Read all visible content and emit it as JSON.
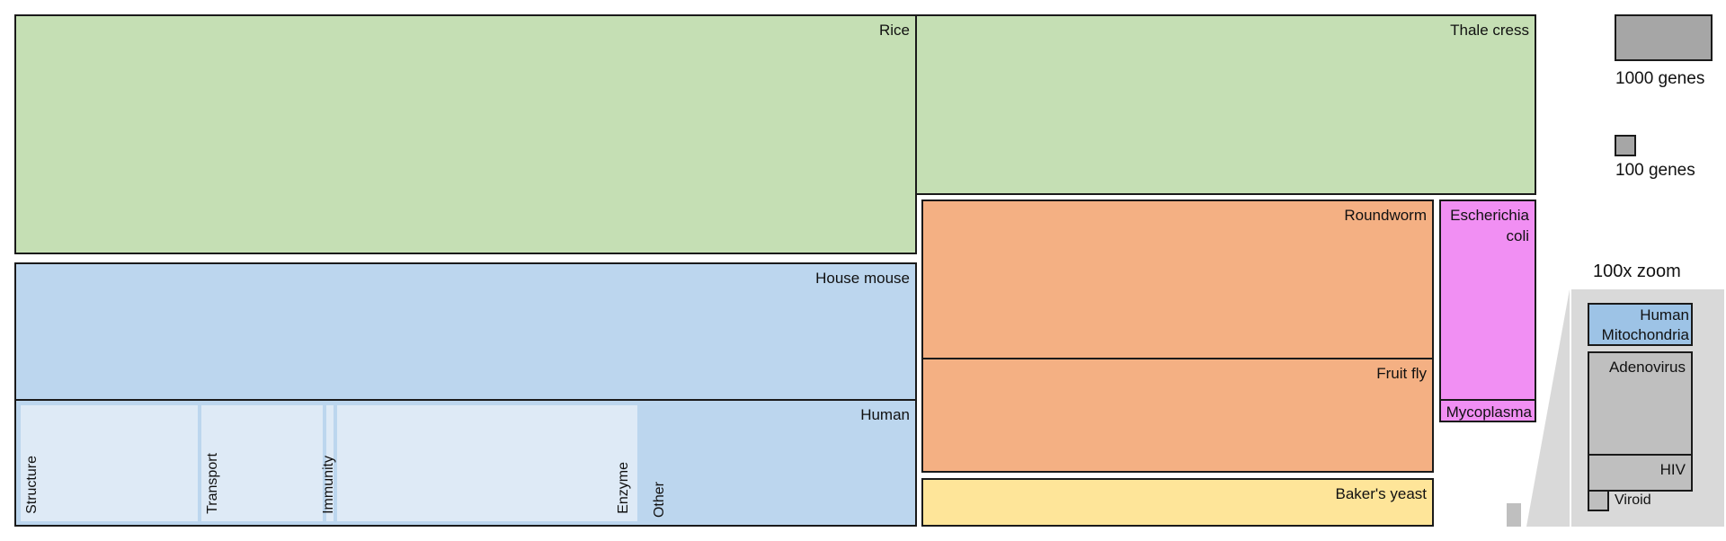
{
  "organisms": {
    "rice": "Rice",
    "thale_cress": "Thale cress",
    "house_mouse": "House mouse",
    "human": "Human",
    "roundworm": "Roundworm",
    "fruit_fly": "Fruit fly",
    "bakers_yeast": "Baker's yeast",
    "e_coli_line1": "Escherichia",
    "e_coli_line2": "coli",
    "mycoplasma": "Mycoplasma"
  },
  "human_categories": [
    "Structure",
    "Transport",
    "Immunity",
    "Enzyme",
    "Other"
  ],
  "legend": {
    "large": "1000 genes",
    "small": "100 genes"
  },
  "zoom": {
    "title": "100x zoom",
    "human_mito_line1": "Human",
    "human_mito_line2": "Mitochondria",
    "adenovirus": "Adenovirus",
    "hiv": "HIV",
    "viroid": "Viroid"
  },
  "colors": {
    "plants": "#c5dfb4",
    "vertebrates": "#bcd6ee",
    "invertebrates": "#f4b083",
    "fungi": "#fee599",
    "bacteria": "#f18ff3",
    "viruses": "#bfbfbf",
    "human_subcategory": "#deeaf6",
    "mitochondria": "#9dc3e6"
  }
}
